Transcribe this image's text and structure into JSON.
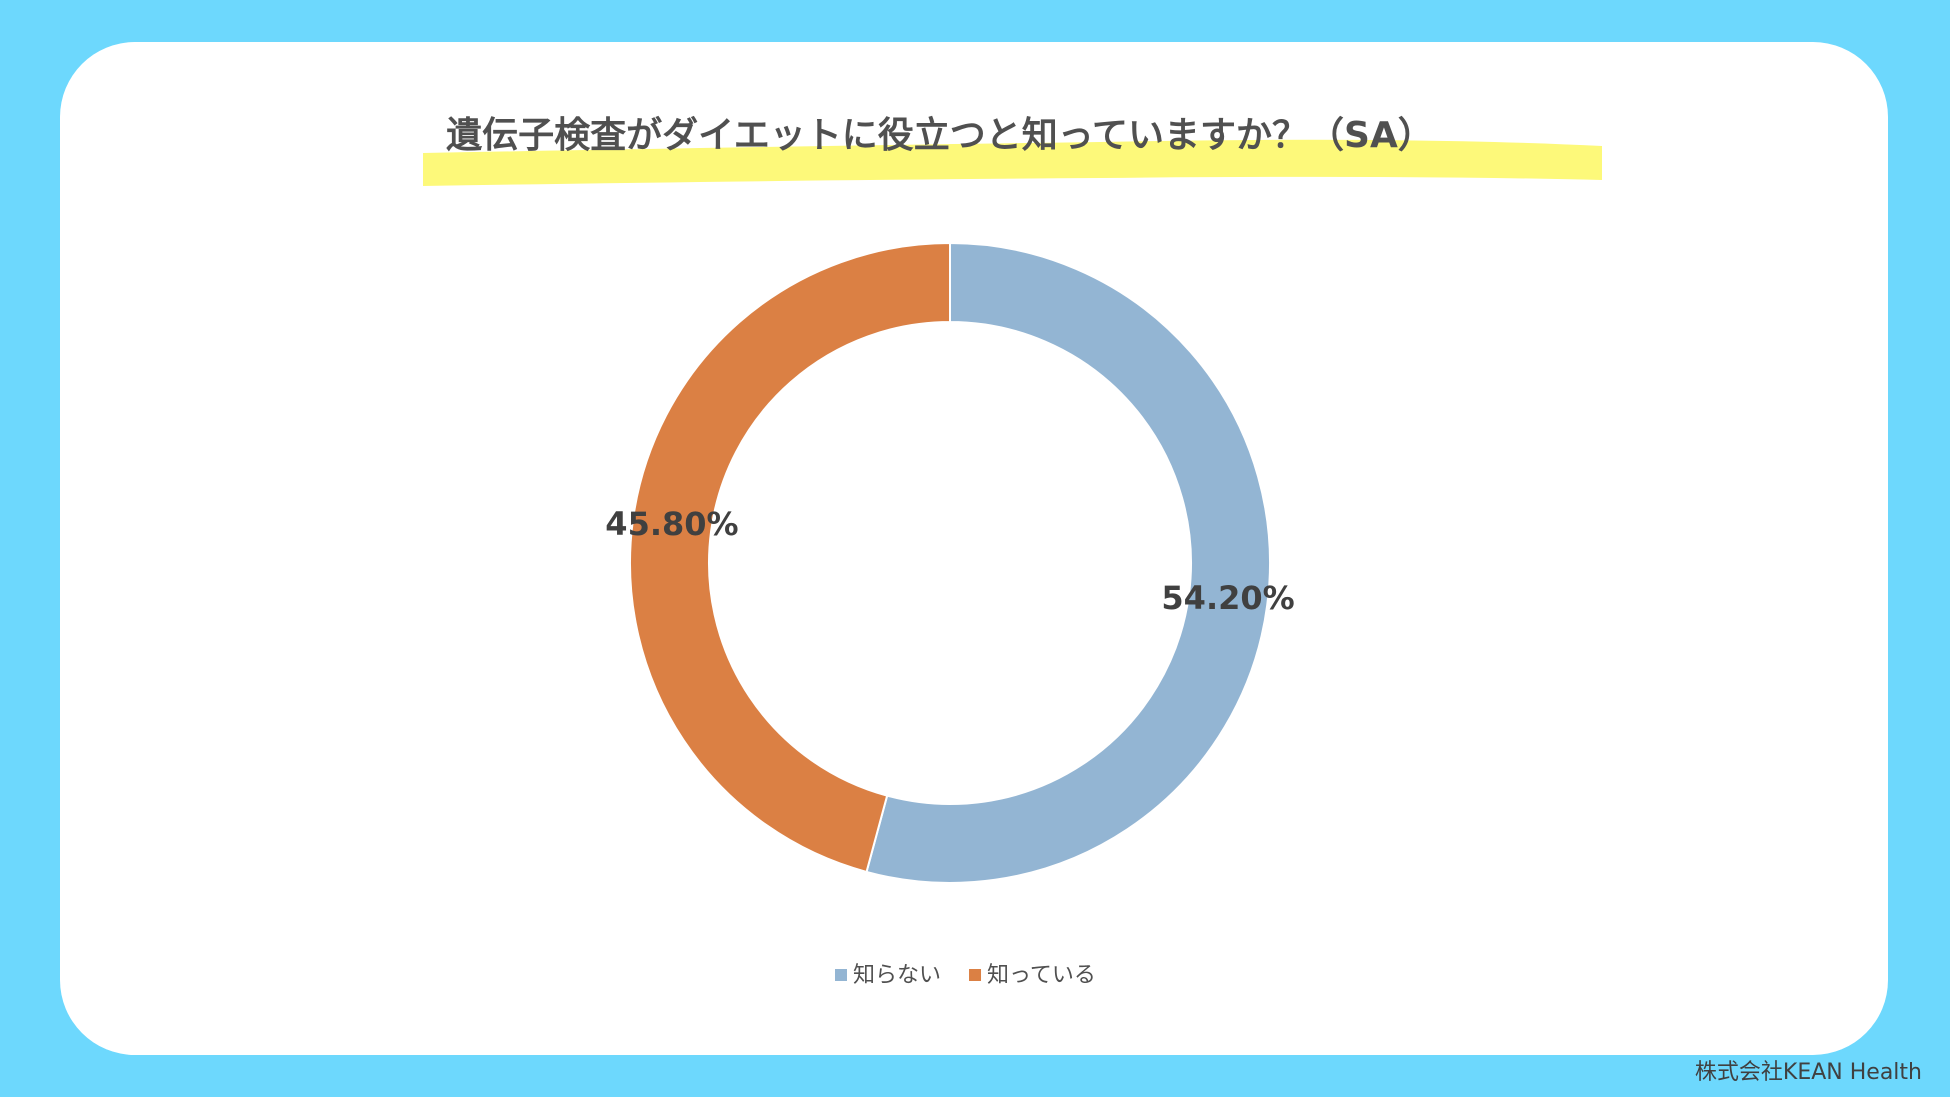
{
  "chart_data": {
    "type": "donut",
    "title": "遺伝子検査がダイエットに役立つと知っていますか？（SA）",
    "categories": [
      "知らない",
      "知っている"
    ],
    "values": [
      54.2,
      45.8
    ],
    "value_labels": [
      "54.20%",
      "45.80%"
    ],
    "colors": [
      "#93b5d3",
      "#db8044"
    ]
  },
  "footer": "株式会社KEAN Health"
}
